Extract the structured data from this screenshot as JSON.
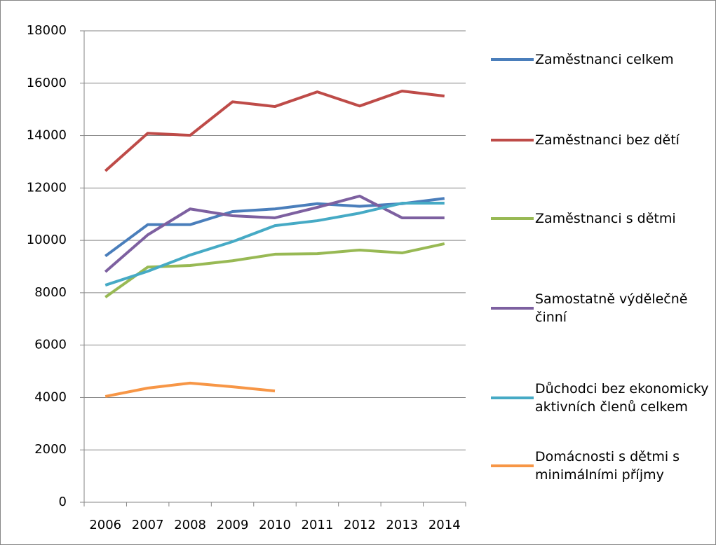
{
  "chart_data": {
    "type": "line",
    "categories": [
      "2006",
      "2007",
      "2008",
      "2009",
      "2010",
      "2011",
      "2012",
      "2013",
      "2014"
    ],
    "series": [
      {
        "name": "Zaměstnanci celkem",
        "color": "#4a7ebb",
        "values": [
          9400,
          10600,
          10600,
          11100,
          11200,
          11400,
          11300,
          11400,
          11600
        ]
      },
      {
        "name": "Zaměstnanci bez dětí",
        "color": "#be4b48",
        "values": [
          12650,
          14090,
          14010,
          15290,
          15110,
          15670,
          15130,
          15700,
          15510
        ]
      },
      {
        "name": "Zaměstnanci s dětmi",
        "color": "#98b954",
        "values": [
          7830,
          8980,
          9040,
          9220,
          9470,
          9490,
          9630,
          9520,
          9870
        ]
      },
      {
        "name": "Samostatně výdělečně činní",
        "color": "#7d60a0",
        "values": [
          8800,
          10210,
          11200,
          10940,
          10860,
          11260,
          11690,
          10860,
          10860
        ]
      },
      {
        "name": "Důchodci bez ekonomicky aktivních členů celkem",
        "color": "#46aac5",
        "values": [
          8290,
          8820,
          9440,
          9950,
          10560,
          10750,
          11040,
          11420,
          11420
        ]
      },
      {
        "name": "Domácnosti s dětmi s minimálními příjmy",
        "color": "#f79646",
        "values": [
          4040,
          4360,
          4550,
          4410,
          4250,
          null,
          null,
          null,
          null
        ]
      }
    ],
    "ylim": [
      0,
      18000
    ],
    "yticks": [
      0,
      2000,
      4000,
      6000,
      8000,
      10000,
      12000,
      14000,
      16000,
      18000
    ],
    "grid": true,
    "legend": "right"
  }
}
